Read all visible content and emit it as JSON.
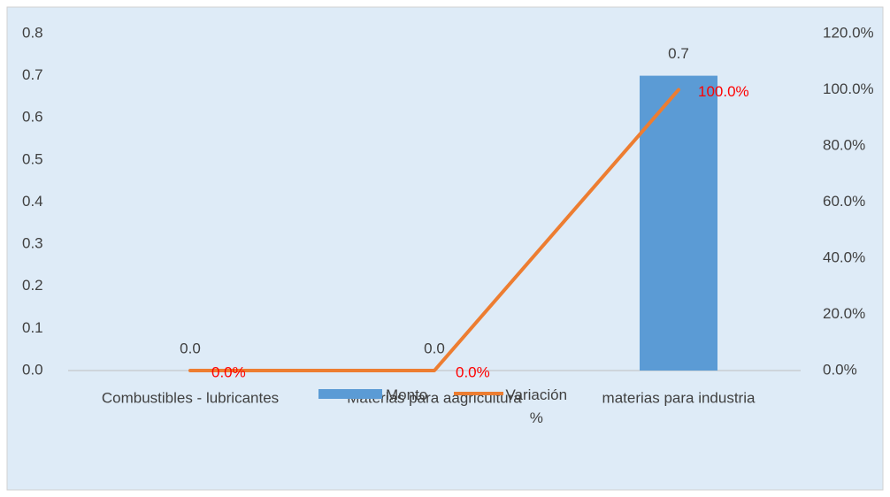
{
  "chart_data": {
    "type": "bar",
    "categories": [
      "Combustibles - lubricantes",
      "Materias para aagricultura",
      "materias para industria"
    ],
    "series": [
      {
        "name": "Monto",
        "type": "bar",
        "color": "#5b9bd5",
        "axis": "y",
        "values": [
          0.0,
          0.0,
          0.7
        ],
        "value_labels": [
          "0.0",
          "0.0",
          "0.7"
        ]
      },
      {
        "name": "Variación %",
        "type": "line",
        "color": "#ed7d31",
        "axis": "y2",
        "values": [
          0,
          0,
          100
        ],
        "value_labels": [
          "0.0%",
          "0.0%",
          "100.0%"
        ],
        "label_color": "#ff0000"
      }
    ],
    "ylim": [
      0,
      0.8
    ],
    "yticks": [
      {
        "value": 0,
        "label": "0.0"
      },
      0.1,
      0.2,
      0.3,
      0.4,
      0.5,
      0.6,
      0.7,
      0.8
    ],
    "y2lim": [
      0,
      120
    ],
    "y2ticks": [
      {
        "value": 0,
        "label": "0.0%"
      },
      {
        "value": 20,
        "label": "20.0%"
      },
      {
        "value": 40,
        "label": "40.0%"
      },
      {
        "value": 60,
        "label": "60.0%"
      },
      {
        "value": 80,
        "label": "80.0%"
      },
      {
        "value": 100,
        "label": "100.0%"
      },
      {
        "value": 120,
        "label": "120.0%"
      }
    ],
    "grid": false,
    "legend": "bottom"
  }
}
